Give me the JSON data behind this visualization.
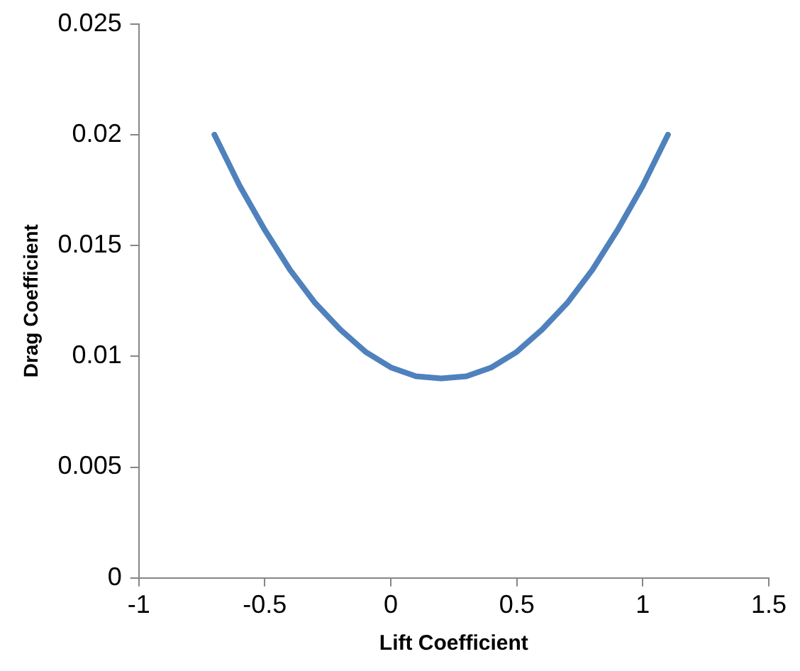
{
  "chart_data": {
    "type": "line",
    "xlabel": "Lift Coefficient",
    "ylabel": "Drag Coefficient",
    "series": [
      {
        "color": "#4f81bd",
        "x": [
          -0.7,
          -0.6,
          -0.5,
          -0.4,
          -0.3,
          -0.2,
          -0.1,
          0,
          0.1,
          0.2,
          0.3,
          0.4,
          0.5,
          0.6,
          0.7,
          0.8,
          0.9,
          1.0,
          1.1
        ],
        "values": [
          0.02,
          0.0177,
          0.0157,
          0.0139,
          0.0124,
          0.0112,
          0.0102,
          0.0095,
          0.0091,
          0.009,
          0.0091,
          0.0095,
          0.0102,
          0.0112,
          0.0124,
          0.0139,
          0.0157,
          0.0177,
          0.02
        ]
      }
    ],
    "xlim": [
      -1,
      1.5
    ],
    "xticks": [
      -1,
      -0.5,
      0,
      0.5,
      1,
      1.5
    ],
    "ylim": [
      0,
      0.025
    ],
    "yticks": [
      0,
      0.005,
      0.01,
      0.015,
      0.02,
      0.025
    ],
    "grid": false,
    "legend": false,
    "marker": "none",
    "line_style": "solid"
  }
}
